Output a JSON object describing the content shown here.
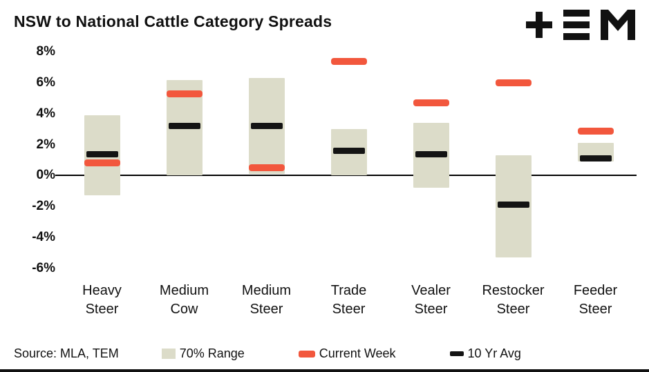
{
  "header": {
    "title": "NSW to National Cattle Category Spreads"
  },
  "footer": {
    "source": "Source: MLA, TEM"
  },
  "legend": [
    {
      "label": "70% Range",
      "type": "range"
    },
    {
      "label": "Current Week",
      "type": "current"
    },
    {
      "label": "10 Yr Avg",
      "type": "avg"
    }
  ],
  "colors": {
    "range": "#dcdcc9",
    "current": "#f2573d",
    "avg": "#141414",
    "axis": "#000000"
  },
  "icons": {
    "logo": "tem-logo"
  },
  "chart_data": {
    "type": "bar",
    "subtype": "floating-range-with-markers",
    "title": "NSW to National Cattle Category Spreads",
    "xlabel": "",
    "ylabel": "",
    "categories": [
      "Heavy Steer",
      "Medium Cow",
      "Medium Steer",
      "Trade Steer",
      "Vealer Steer",
      "Restocker Steer",
      "Feeder Steer"
    ],
    "series": [
      {
        "name": "70% Range",
        "type": "range-bar",
        "low": [
          -1.3,
          0.0,
          0.1,
          0.0,
          -0.8,
          -5.3,
          0.9
        ],
        "high": [
          3.9,
          6.2,
          6.3,
          3.0,
          3.4,
          1.3,
          2.1
        ]
      },
      {
        "name": "Current Week",
        "type": "tick-marker",
        "values": [
          0.8,
          5.3,
          0.5,
          7.4,
          4.7,
          6.0,
          2.9
        ]
      },
      {
        "name": "10 Yr Avg",
        "type": "tick-marker",
        "values": [
          1.4,
          3.2,
          3.2,
          1.6,
          1.4,
          -1.9,
          1.1
        ]
      }
    ],
    "ylim": [
      -6.6,
      8.6
    ],
    "yticks": [
      8,
      6,
      4,
      2,
      0,
      -2,
      -4,
      -6
    ],
    "ytick_format": "percent",
    "grid": false,
    "zero_line": true,
    "legend_position": "bottom"
  }
}
